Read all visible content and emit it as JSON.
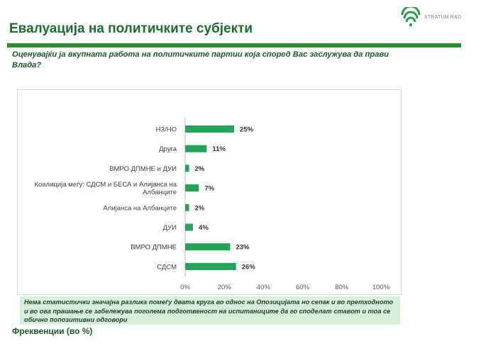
{
  "brand": {
    "logo_text": "STRATUM R&D",
    "accent": "#22a45a",
    "dark_green": "#1e6b35"
  },
  "header": {
    "title": "Евалуација на политичките субјекти",
    "subtitle": "Оценувајќи ја вкупната работа на политичките партии која според Вас заслужува да прави Влада?"
  },
  "note": "Нема статистички значајна разлика помеѓу двата круга во однос на Опозицијата но сепак и во претходното и во ова прашање се забележува поголема подготвеност на испитаниците да го споделат ставот и тоа се обично попозитивни одговори",
  "footer_label": "Фреквенции (во %)",
  "chart_data": {
    "type": "bar",
    "orientation": "horizontal",
    "categories": [
      [
        "НЗ/НО"
      ],
      [
        "Друга"
      ],
      [
        "ВМРО ДПМНЕ и ДУИ"
      ],
      [
        "Коалиција меѓу: СДСМ и БЕСА и Алијанса на",
        "Албанците"
      ],
      [
        "Алијанса на Албанците"
      ],
      [
        "ДУИ"
      ],
      [
        "ВМРО ДПМНЕ"
      ],
      [
        "СДСМ"
      ]
    ],
    "values": [
      25,
      11,
      2,
      7,
      2,
      4,
      23,
      26
    ],
    "value_labels": [
      "25%",
      "11%",
      "2%",
      "7%",
      "2%",
      "4%",
      "23%",
      "26%"
    ],
    "xlim": [
      0,
      100
    ],
    "xticks": [
      "0%",
      "20%",
      "40%",
      "60%",
      "80%",
      "100%"
    ],
    "bar_color": "#22a45a",
    "grid": false
  }
}
